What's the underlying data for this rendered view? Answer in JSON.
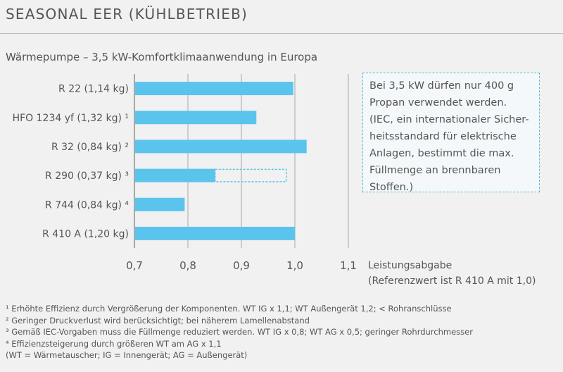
{
  "chart_data": {
    "type": "bar",
    "orientation": "horizontal",
    "title": "SEASONAL EER (KÜHLBETRIEB)",
    "subtitle": "Wärmepumpe – 3,5 kW-Komfortklimaanwendung in Europa",
    "xlabel_line1": "Leistungsabgabe",
    "xlabel_line2": "(Referenzwert ist R 410 A mit 1,0)",
    "xlim": [
      0.7,
      1.1
    ],
    "xticks": [
      0.7,
      0.8,
      0.9,
      1.0,
      1.1
    ],
    "xtick_labels": [
      "0,7",
      "0,8",
      "0,9",
      "1,0",
      "1,1"
    ],
    "grid": true,
    "categories": [
      "R 22 (1,14 kg)",
      "HFO 1234 yf (1,32 kg) ¹",
      "R 32 (0,84 kg) ²",
      "R 290 (0,37 kg) ³",
      "R 744 (0,84 kg) ⁴",
      "R 410 A (1,20 kg)"
    ],
    "values": [
      0.997,
      0.928,
      1.022,
      0.851,
      0.794,
      1.0
    ],
    "potential_values": [
      null,
      null,
      null,
      0.984,
      null,
      null
    ],
    "bar_color": "#5bc4ec",
    "potential_outline_color": "#5bc4ec"
  },
  "note_box": {
    "lines": [
      "Bei 3,5 kW dürfen nur 400 g",
      "Propan verwendet werden.",
      "(IEC, ein internationaler Sicher-",
      "heitsstandard für elektrische",
      "Anlagen, bestimmt die max.",
      "Füllmenge an brennbaren",
      "Stoffen.)"
    ]
  },
  "footnotes": [
    "¹ Erhöhte Effizienz durch Vergrößerung der Komponenten. WT IG x 1,1; WT Außengerät 1,2; < Rohranschlüsse",
    "² Geringer Druckverlust wird berücksichtigt; bei näherem Lamellenabstand",
    "³ Gemäß IEC-Vorgaben muss die Füllmenge reduziert werden. WT IG x 0,8; WT AG x 0,5; geringer Rohrdurchmesser",
    "⁴ Effizienzsteigerung durch größeren WT am AG x 1,1",
    "(WT = Wärmetauscher; IG = Innengerät; AG = Außengerät)"
  ]
}
